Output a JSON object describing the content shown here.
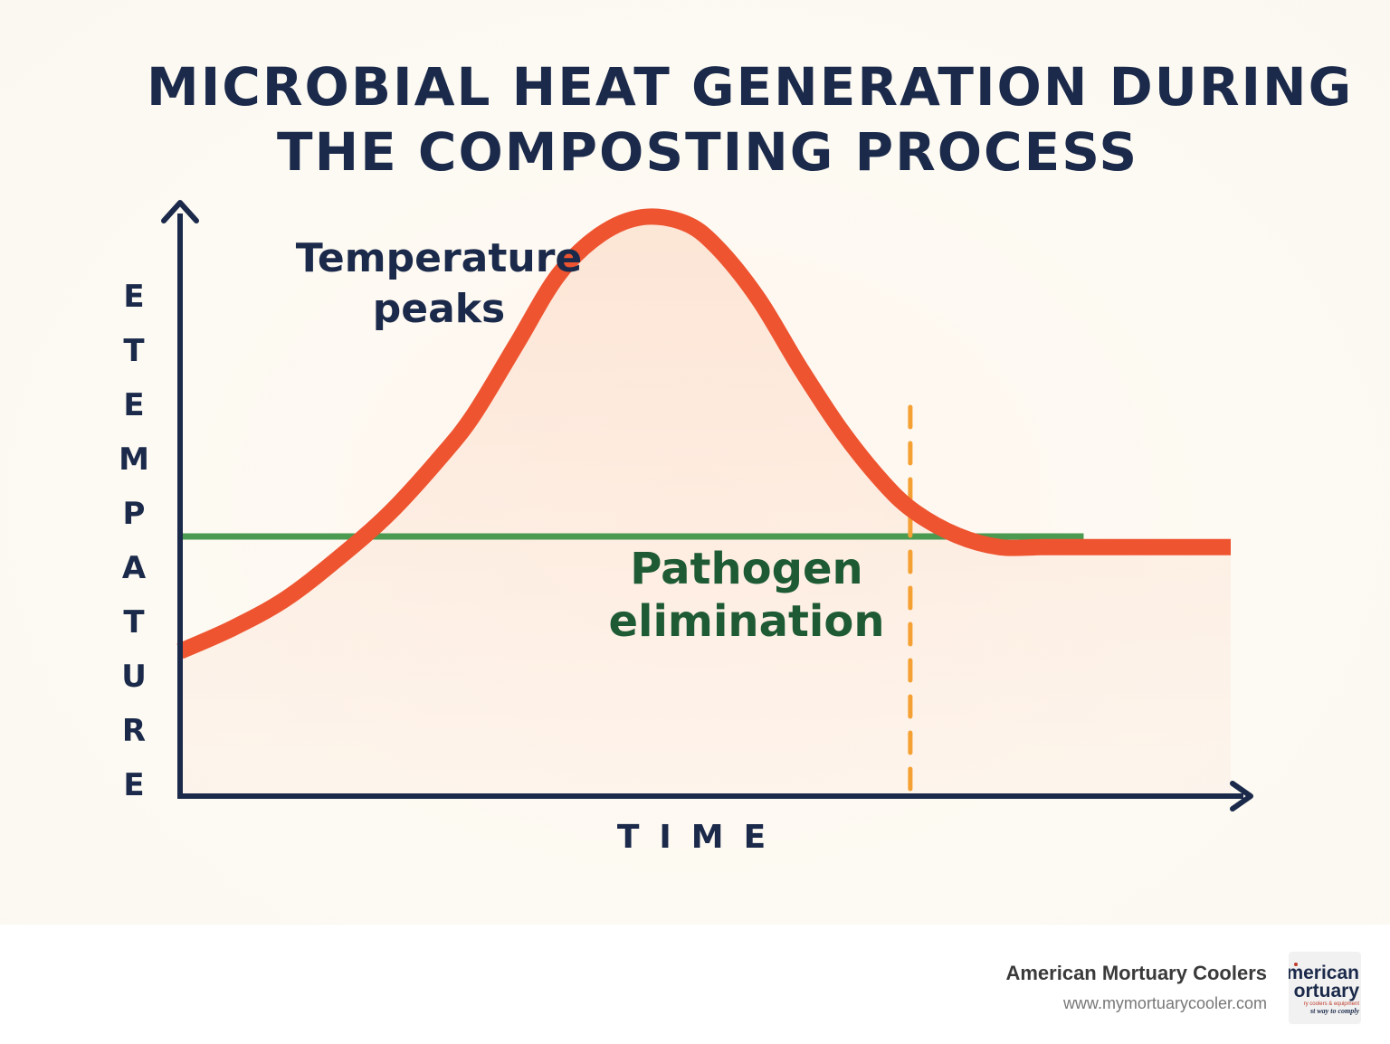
{
  "chart_data": {
    "type": "line",
    "title": "MICROBIAL HEAT GENERATION DURING THE COMPOSTING PROCESS",
    "title_lines": [
      "MICROBIAL HEAT GENERATION DURING",
      "THE COMPOSTING PROCESS"
    ],
    "xlabel": "TIME",
    "ylabel": "TEMPERATURE",
    "ylabel_letters": [
      "E",
      "T",
      "E",
      "M",
      "P",
      "A",
      "T",
      "U",
      "R",
      "E"
    ],
    "grid": false,
    "xlim": [
      0,
      1
    ],
    "ylim": [
      0,
      1
    ],
    "series": [
      {
        "color": "#ee5430",
        "x": [
          0,
          0.05,
          0.1,
          0.15,
          0.2,
          0.25,
          0.28,
          0.32,
          0.36,
          0.4,
          0.44,
          0.48,
          0.51,
          0.55,
          0.59,
          0.63,
          0.67,
          0.7,
          0.74,
          0.78,
          0.82,
          0.86,
          0.9,
          0.95,
          1.0
        ],
        "y": [
          0.25,
          0.29,
          0.34,
          0.41,
          0.49,
          0.59,
          0.66,
          0.78,
          0.9,
          0.97,
          1.0,
          0.99,
          0.95,
          0.86,
          0.74,
          0.63,
          0.54,
          0.49,
          0.45,
          0.43,
          0.43,
          0.43,
          0.43,
          0.43,
          0.43
        ]
      }
    ],
    "threshold": {
      "y": 0.45,
      "color": "#4a9a52",
      "label": ""
    },
    "marker": {
      "x": 0.695,
      "color": "#f5a033",
      "style": "dashed"
    },
    "annotations": [
      {
        "text_lines": [
          "Temperature",
          "peaks"
        ],
        "color": "#1b2a4a"
      },
      {
        "text_lines": [
          "Pathogen",
          "elimination"
        ],
        "color": "#1e5a34"
      }
    ],
    "colors": {
      "axis": "#1b2a4a",
      "fill": "#fcd9c4"
    }
  },
  "footer": {
    "brand_name": "American Mortuary Coolers",
    "url": "www.mymortuarycooler.com",
    "logo": {
      "line1": "merican",
      "line2": "ortuary",
      "line3": "ry coolers & equipment",
      "line4": "st way to comply"
    }
  }
}
